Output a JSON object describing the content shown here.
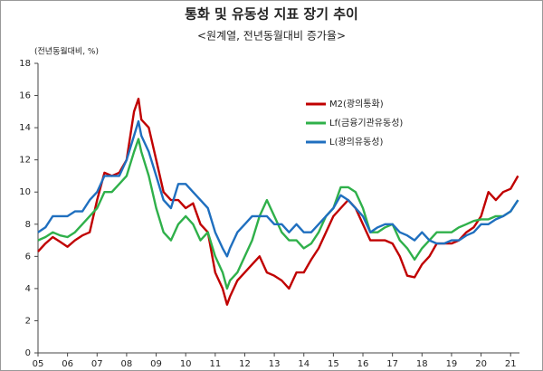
{
  "chart_data": {
    "type": "line",
    "title": "통화 및 유동성 지표 장기 추이",
    "subtitle": "<원계열, 전년동월대비 증가율>",
    "y_label": "(전년동월대비, %)",
    "x": [
      5,
      5.25,
      5.5,
      5.75,
      6,
      6.25,
      6.5,
      6.75,
      7,
      7.25,
      7.5,
      7.75,
      8,
      8.25,
      8.4,
      8.5,
      8.75,
      9,
      9.25,
      9.5,
      9.75,
      10,
      10.25,
      10.5,
      10.75,
      11,
      11.25,
      11.4,
      11.5,
      11.75,
      12,
      12.25,
      12.5,
      12.75,
      13,
      13.25,
      13.5,
      13.75,
      14,
      14.25,
      14.5,
      14.75,
      15,
      15.25,
      15.5,
      15.75,
      16,
      16.25,
      16.5,
      16.75,
      17,
      17.25,
      17.5,
      17.75,
      18,
      18.25,
      18.5,
      18.75,
      19,
      19.25,
      19.5,
      19.75,
      20,
      20.25,
      20.5,
      20.75,
      21,
      21.25
    ],
    "series": [
      {
        "name": "M2(광의통화)",
        "color": "#c00000",
        "values": [
          6.3,
          6.8,
          7.2,
          6.9,
          6.6,
          7.0,
          7.3,
          7.5,
          9.5,
          11.2,
          11.0,
          11.2,
          12.0,
          15.0,
          15.8,
          14.5,
          14.0,
          12.0,
          10.0,
          9.5,
          9.5,
          9.0,
          9.3,
          8.0,
          7.5,
          5.0,
          4.0,
          3.0,
          3.5,
          4.5,
          5.0,
          5.5,
          6.0,
          5.0,
          4.8,
          4.5,
          4.0,
          5.0,
          5.0,
          5.8,
          6.5,
          7.5,
          8.5,
          9.0,
          9.5,
          9.0,
          8.0,
          7.0,
          7.0,
          7.0,
          6.8,
          6.0,
          4.8,
          4.7,
          5.5,
          6.0,
          6.8,
          6.8,
          6.8,
          7.0,
          7.5,
          7.8,
          8.5,
          10.0,
          9.5,
          10.0,
          10.2,
          11.0
        ]
      },
      {
        "name": "Lf(금융기관유동성)",
        "color": "#2fb04a",
        "values": [
          7.0,
          7.2,
          7.5,
          7.3,
          7.2,
          7.5,
          8.0,
          8.5,
          9.0,
          10.0,
          10.0,
          10.5,
          11.0,
          12.5,
          13.3,
          12.5,
          11.0,
          9.0,
          7.5,
          7.0,
          8.0,
          8.5,
          8.0,
          7.0,
          7.5,
          6.0,
          5.0,
          4.0,
          4.5,
          5.0,
          6.0,
          7.0,
          8.5,
          9.5,
          8.5,
          7.5,
          7.0,
          7.0,
          6.5,
          6.8,
          7.5,
          8.5,
          9.0,
          10.3,
          10.3,
          10.0,
          9.0,
          7.5,
          7.5,
          7.8,
          8.0,
          7.0,
          6.5,
          5.8,
          6.5,
          7.0,
          7.5,
          7.5,
          7.5,
          7.8,
          8.0,
          8.2,
          8.3,
          8.3,
          8.5,
          8.5,
          8.8,
          9.5
        ]
      },
      {
        "name": "L(광의유동성)",
        "color": "#1f6fbf",
        "values": [
          7.5,
          7.8,
          8.5,
          8.5,
          8.5,
          8.8,
          8.8,
          9.5,
          10.0,
          11.0,
          11.0,
          11.0,
          12.0,
          13.5,
          14.4,
          13.5,
          12.5,
          11.0,
          9.5,
          9.0,
          10.5,
          10.5,
          10.0,
          9.5,
          9.0,
          7.5,
          6.5,
          6.0,
          6.5,
          7.5,
          8.0,
          8.5,
          8.5,
          8.5,
          8.0,
          8.0,
          7.5,
          8.0,
          7.5,
          7.5,
          8.0,
          8.5,
          9.0,
          9.8,
          9.5,
          9.0,
          8.5,
          7.5,
          7.8,
          8.0,
          8.0,
          7.5,
          7.3,
          7.0,
          7.5,
          7.0,
          6.8,
          6.8,
          7.0,
          7.0,
          7.3,
          7.5,
          8.0,
          8.0,
          8.3,
          8.5,
          8.8,
          9.5
        ]
      }
    ],
    "xlim": [
      5,
      21.3
    ],
    "xticks": [
      {
        "value": 5,
        "label": "05"
      },
      {
        "value": 6,
        "label": "06"
      },
      {
        "value": 7,
        "label": "07"
      },
      {
        "value": 8,
        "label": "08"
      },
      {
        "value": 9,
        "label": "09"
      },
      10,
      11,
      12,
      13,
      14,
      15,
      16,
      17,
      18,
      19,
      20,
      21
    ],
    "ylim": [
      0,
      18
    ],
    "yticks": [
      0,
      2,
      4,
      6,
      8,
      10,
      12,
      14,
      16,
      18
    ],
    "grid": false
  }
}
